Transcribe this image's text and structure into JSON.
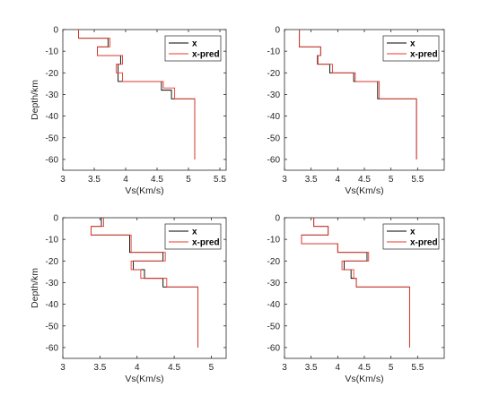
{
  "chart_data": [
    {
      "type": "line",
      "subplot": "top-left",
      "xlabel": "Vs(Km/s)",
      "ylabel": "Depth/km",
      "xlim": [
        3,
        5.6
      ],
      "ylim": [
        -65,
        0
      ],
      "xticks": [
        3,
        3.5,
        4,
        4.5,
        5,
        5.5
      ],
      "yticks": [
        0,
        -10,
        -20,
        -30,
        -40,
        -50,
        -60
      ],
      "grid": false,
      "legend_position": "top-right",
      "series": [
        {
          "name": "x",
          "color": "#000000",
          "x": [
            3.25,
            3.25,
            3.72,
            3.72,
            3.55,
            3.55,
            3.92,
            3.92,
            3.88,
            3.88,
            3.93,
            3.93,
            4.57,
            4.57,
            4.73,
            4.73,
            5.1,
            5.1
          ],
          "y": [
            0,
            -4,
            -4,
            -8,
            -8,
            -12,
            -12,
            -16,
            -16,
            -24,
            -24,
            -24,
            -24,
            -28,
            -28,
            -32,
            -32,
            -60
          ]
        },
        {
          "name": "x-pred",
          "color": "#e8392b",
          "x": [
            3.25,
            3.25,
            3.75,
            3.75,
            3.55,
            3.55,
            3.95,
            3.95,
            3.85,
            3.85,
            3.95,
            3.95,
            4.6,
            4.6,
            4.78,
            4.78,
            5.1,
            5.1
          ],
          "y": [
            0,
            -4,
            -4,
            -8,
            -8,
            -12,
            -12,
            -16,
            -16,
            -20,
            -20,
            -24,
            -24,
            -27,
            -27,
            -32,
            -32,
            -60
          ]
        }
      ]
    },
    {
      "type": "line",
      "subplot": "top-right",
      "xlabel": "Vs(Km/s)",
      "ylabel": "",
      "xlim": [
        3,
        6
      ],
      "ylim": [
        -65,
        0
      ],
      "xticks": [
        3,
        3.5,
        4,
        4.5,
        5,
        5.5
      ],
      "yticks": [
        0,
        -10,
        -20,
        -30,
        -40,
        -50,
        -60
      ],
      "grid": false,
      "legend_position": "top-right",
      "series": [
        {
          "name": "x",
          "color": "#000000",
          "x": [
            3.28,
            3.28,
            3.68,
            3.68,
            3.62,
            3.62,
            3.85,
            3.85,
            4.3,
            4.3,
            4.75,
            4.75,
            5.48,
            5.48
          ],
          "y": [
            0,
            -8,
            -8,
            -12,
            -12,
            -16,
            -16,
            -20,
            -20,
            -24,
            -24,
            -32,
            -32,
            -60
          ]
        },
        {
          "name": "x-pred",
          "color": "#e8392b",
          "x": [
            3.28,
            3.28,
            3.68,
            3.68,
            3.63,
            3.63,
            3.9,
            3.9,
            4.33,
            4.33,
            4.78,
            4.78,
            5.48,
            5.48
          ],
          "y": [
            0,
            -8,
            -8,
            -12,
            -12,
            -16,
            -16,
            -20,
            -20,
            -24,
            -24,
            -32,
            -32,
            -60
          ]
        }
      ]
    },
    {
      "type": "line",
      "subplot": "bottom-left",
      "xlabel": "Vs(Km/s)",
      "ylabel": "Depth/km",
      "xlim": [
        3,
        5.2
      ],
      "ylim": [
        -65,
        0
      ],
      "xticks": [
        3,
        3.5,
        4,
        4.5,
        5
      ],
      "yticks": [
        0,
        -10,
        -20,
        -30,
        -40,
        -50,
        -60
      ],
      "grid": false,
      "legend_position": "top-right",
      "series": [
        {
          "name": "x",
          "color": "#000000",
          "x": [
            3.52,
            3.52,
            3.38,
            3.38,
            3.9,
            3.9,
            4.35,
            4.35,
            3.95,
            3.95,
            4.1,
            4.1,
            4.35,
            4.35,
            4.82,
            4.82
          ],
          "y": [
            0,
            -4,
            -4,
            -8,
            -8,
            -16,
            -16,
            -20,
            -20,
            -24,
            -24,
            -28,
            -28,
            -32,
            -32,
            -60
          ]
        },
        {
          "name": "x-pred",
          "color": "#e8392b",
          "x": [
            3.55,
            3.55,
            3.38,
            3.38,
            3.92,
            3.92,
            4.38,
            4.38,
            3.92,
            3.92,
            4.05,
            4.05,
            4.4,
            4.4,
            4.82,
            4.82
          ],
          "y": [
            0,
            -4,
            -4,
            -8,
            -8,
            -16,
            -16,
            -20,
            -20,
            -24,
            -24,
            -28,
            -28,
            -32,
            -32,
            -60
          ]
        }
      ]
    },
    {
      "type": "line",
      "subplot": "bottom-right",
      "xlabel": "Vs(Km/s)",
      "ylabel": "",
      "xlim": [
        3,
        6
      ],
      "ylim": [
        -65,
        0
      ],
      "xticks": [
        3,
        3.5,
        4,
        4.5,
        5,
        5.5
      ],
      "yticks": [
        0,
        -10,
        -20,
        -30,
        -40,
        -50,
        -60
      ],
      "grid": false,
      "legend_position": "top-right",
      "series": [
        {
          "name": "x",
          "color": "#000000",
          "x": [
            3.55,
            3.55,
            3.82,
            3.82,
            3.32,
            3.32,
            4.0,
            4.0,
            4.55,
            4.55,
            4.12,
            4.12,
            4.25,
            4.25,
            4.35,
            4.35,
            5.35,
            5.35
          ],
          "y": [
            0,
            -4,
            -4,
            -8,
            -8,
            -12,
            -12,
            -16,
            -16,
            -20,
            -20,
            -24,
            -24,
            -28,
            -28,
            -32,
            -32,
            -60
          ]
        },
        {
          "name": "x-pred",
          "color": "#e8392b",
          "x": [
            3.55,
            3.55,
            3.82,
            3.82,
            3.32,
            3.32,
            4.0,
            4.0,
            4.58,
            4.58,
            4.08,
            4.08,
            4.3,
            4.3,
            4.35,
            4.35,
            5.35,
            5.35
          ],
          "y": [
            0,
            -4,
            -4,
            -8,
            -8,
            -12,
            -12,
            -16,
            -16,
            -20,
            -20,
            -24,
            -24,
            -28,
            -28,
            -32,
            -32,
            -60
          ]
        }
      ]
    }
  ]
}
